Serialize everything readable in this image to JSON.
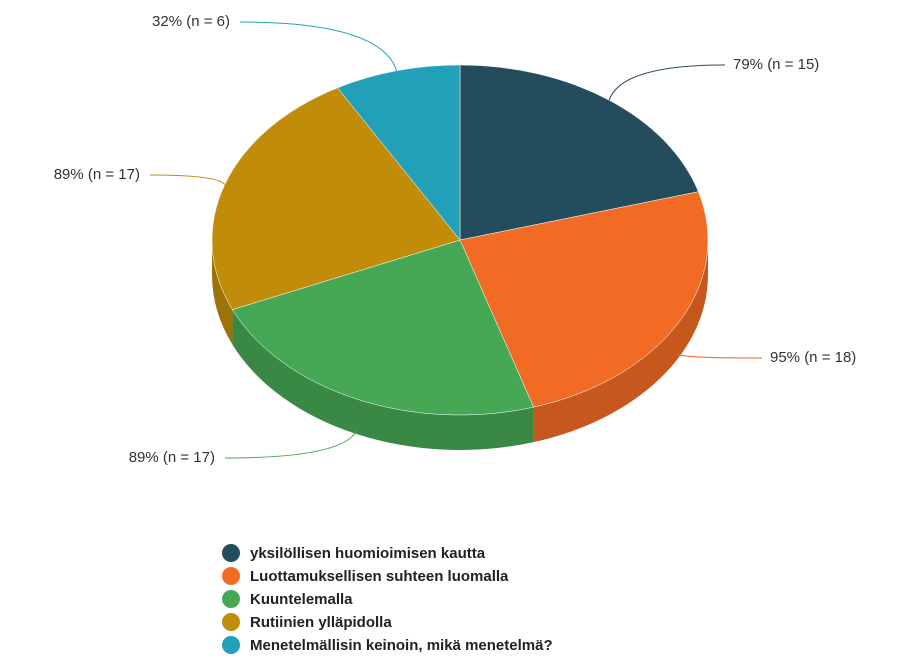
{
  "chart_data": {
    "type": "pie",
    "categories": [
      "yksilöllisen huomioimisen kautta",
      "Luottamuksellisen suhteen luomalla",
      "Kuuntelemalla",
      "Rutiinien ylläpidolla",
      "Menetelmällisin keinoin, mikä menetelmä?"
    ],
    "values": [
      15,
      18,
      17,
      17,
      6
    ],
    "value_labels": [
      "79% (n = 15)",
      "95% (n = 18)",
      "89% (n = 17)",
      "89% (n = 17)",
      "32% (n = 6)"
    ],
    "colors": [
      "#234d5c",
      "#f26b25",
      "#46a754",
      "#c08c0a",
      "#21a0b8"
    ],
    "legend": "bottom"
  }
}
